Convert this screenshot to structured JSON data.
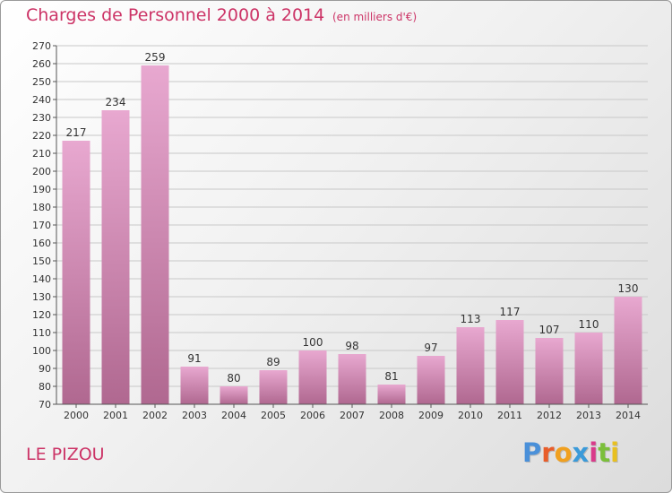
{
  "header": {
    "title": "Charges de Personnel 2000 à 2014",
    "subtitle": "(en milliers d'€)"
  },
  "footer": {
    "commune": "LE PIZOU",
    "brand": "Proxiti",
    "brand_colors": [
      "#4a90d9",
      "#e85d2a",
      "#f0a020",
      "#3a9ad9",
      "#d93a8a",
      "#7bbf3a",
      "#e8c020"
    ]
  },
  "colors": {
    "title": "#cc3366",
    "bar_light": "#e8a8d0",
    "bar_dark": "#b06890",
    "axis": "#555555",
    "grid": "#c8c8c8"
  },
  "chart_data": {
    "type": "bar",
    "title": "Charges de Personnel 2000 à 2014",
    "subtitle": "(en milliers d'€)",
    "xlabel": "",
    "ylabel": "",
    "categories": [
      "2000",
      "2001",
      "2002",
      "2003",
      "2004",
      "2005",
      "2006",
      "2007",
      "2008",
      "2009",
      "2010",
      "2011",
      "2012",
      "2013",
      "2014"
    ],
    "values": [
      217,
      234,
      259,
      91,
      80,
      89,
      100,
      98,
      81,
      97,
      113,
      117,
      107,
      110,
      130
    ],
    "ylim": [
      70,
      270
    ],
    "yticks": [
      70,
      80,
      90,
      100,
      110,
      120,
      130,
      140,
      150,
      160,
      170,
      180,
      190,
      200,
      210,
      220,
      230,
      240,
      250,
      260,
      270
    ],
    "grid": true,
    "data_labels": true
  }
}
